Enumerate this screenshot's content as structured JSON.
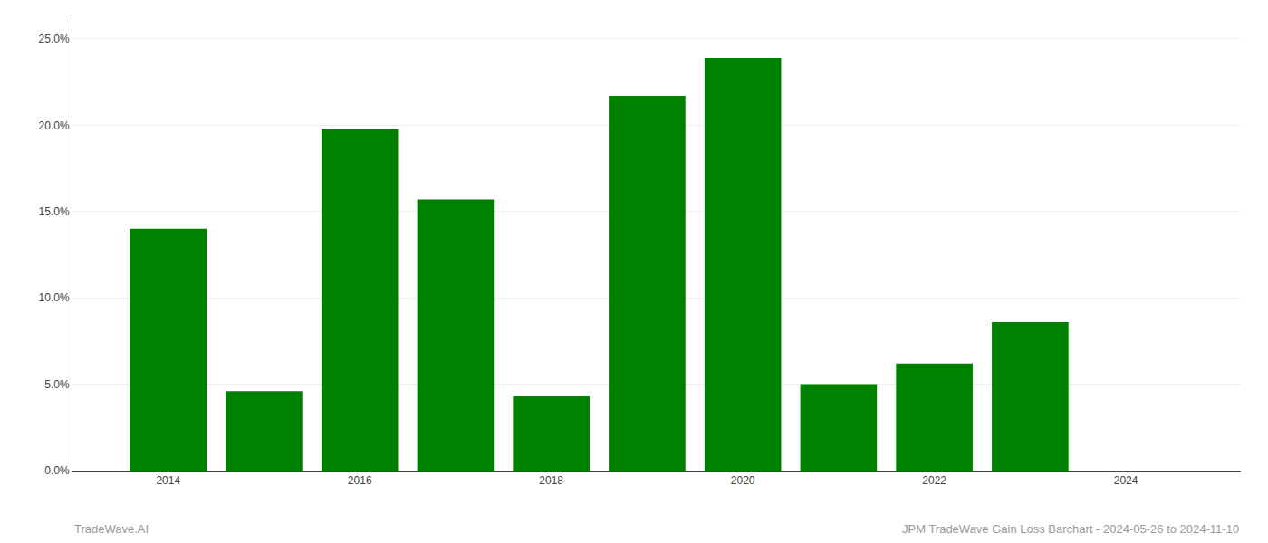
{
  "chart_data": {
    "type": "bar",
    "x": [
      2014,
      2015,
      2016,
      2017,
      2018,
      2019,
      2020,
      2021,
      2022,
      2023
    ],
    "values": [
      0.14,
      0.046,
      0.198,
      0.157,
      0.043,
      0.217,
      0.239,
      0.05,
      0.062,
      0.086
    ],
    "color": "#008000",
    "xlim": [
      2013.0,
      2025.2
    ],
    "xticks": [
      2014,
      2016,
      2018,
      2020,
      2022,
      2024
    ],
    "ylim": [
      0.0,
      0.262
    ],
    "yticks": [
      {
        "value": 0.0,
        "label": "0.0%"
      },
      {
        "value": 0.05,
        "label": "5.0%"
      },
      {
        "value": 0.1,
        "label": "10.0%"
      },
      {
        "value": 0.15,
        "label": "15.0%"
      },
      {
        "value": 0.2,
        "label": "20.0%"
      },
      {
        "value": 0.25,
        "label": "25.0%"
      }
    ],
    "grid": true,
    "annotations": [
      "TradeWave.AI",
      "JPM TradeWave Gain Loss Barchart - 2024-05-26 to 2024-11-10"
    ]
  }
}
